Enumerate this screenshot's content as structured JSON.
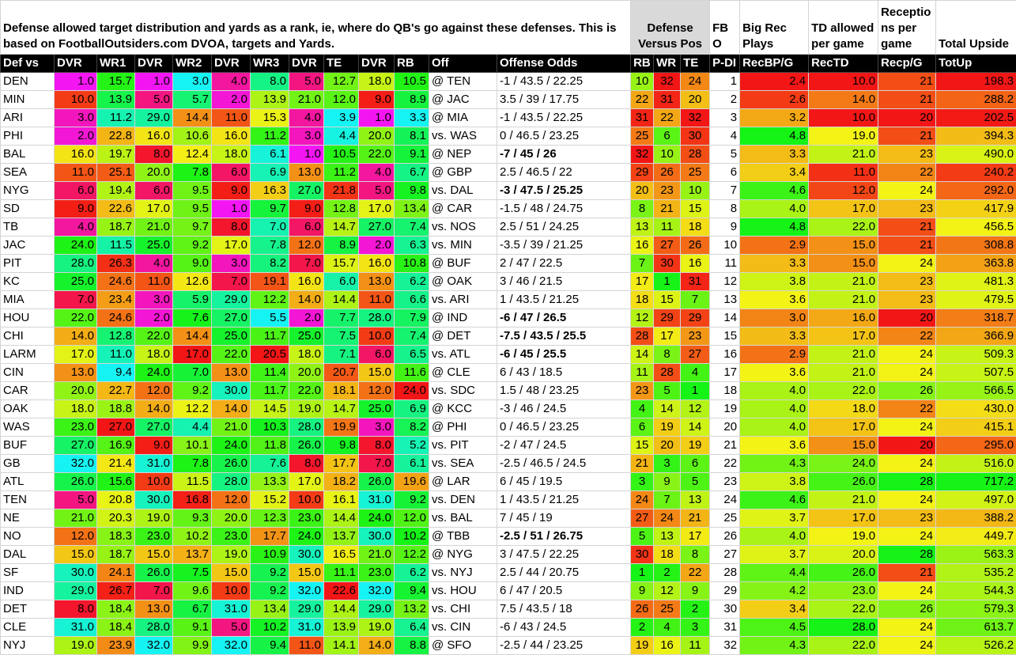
{
  "header": {
    "description": "Defense allowed target distribution and yards as a rank, ie, where do QB's go against these defenses. This is based on FootballOutsiders.com DVOA, targets and Yards.",
    "groups": [
      "Defense Versus Pos",
      "FBO",
      "Big Rec Plays",
      "TD allowed per game",
      "Receptions per game",
      "Total Upside"
    ]
  },
  "table": {
    "columns": [
      "Def vs",
      "DVR",
      "WR1",
      "DVR",
      "WR2",
      "DVR",
      "WR3",
      "DVR",
      "TE",
      "DVR",
      "RB",
      "Off",
      "Offense Odds",
      "RB",
      "WR",
      "TE",
      "P-DI",
      "RecBP/G",
      "RecTD",
      "Recp/G",
      "TotUp"
    ],
    "rows": [
      [
        "DEN",
        "1.0",
        "15.7",
        "1.0",
        "3.0",
        "4.0",
        "8.0",
        "5.0",
        "12.7",
        "18.0",
        "10.5",
        "@ TEN",
        "-1 / 43.5 / 22.25",
        "10",
        "32",
        "24",
        "1",
        "2.4",
        "10.0",
        "21",
        "198.3"
      ],
      [
        "MIN",
        "10.0",
        "13.9",
        "5.0",
        "5.7",
        "2.0",
        "13.9",
        "21.0",
        "12.0",
        "9.0",
        "8.9",
        "@ JAC",
        "3.5 / 39 / 17.75",
        "22",
        "31",
        "20",
        "2",
        "2.6",
        "14.0",
        "21",
        "288.2"
      ],
      [
        "ARI",
        "3.0",
        "11.2",
        "29.0",
        "14.4",
        "11.0",
        "15.3",
        "4.0",
        "3.9",
        "1.0",
        "3.3",
        "@ MIA",
        "-1 / 43.5 / 22.25",
        "31",
        "22",
        "32",
        "3",
        "3.2",
        "10.0",
        "20",
        "202.5"
      ],
      [
        "PHI",
        "2.0",
        "22.8",
        "16.0",
        "10.6",
        "16.0",
        "11.2",
        "3.0",
        "4.4",
        "20.0",
        "8.1",
        "vs. WAS",
        "0 / 46.5 / 23.25",
        "25",
        "6",
        "30",
        "4",
        "4.8",
        "19.0",
        "21",
        "394.3"
      ],
      [
        "BAL",
        "16.0",
        "19.7",
        "8.0",
        "12.4",
        "18.0",
        "6.1",
        "1.0",
        "10.5",
        "22.0",
        "9.1",
        "@ NEP",
        "-7 / 45 / 26",
        "32",
        "10",
        "28",
        "5",
        "3.3",
        "21.0",
        "23",
        "490.0"
      ],
      [
        "SEA",
        "11.0",
        "25.1",
        "20.0",
        "7.8",
        "6.0",
        "6.9",
        "13.0",
        "11.2",
        "4.0",
        "6.7",
        "@ GBP",
        "2.5 / 46.5 / 22",
        "29",
        "26",
        "25",
        "6",
        "3.4",
        "11.0",
        "22",
        "240.2"
      ],
      [
        "NYG",
        "6.0",
        "19.4",
        "6.0",
        "9.5",
        "9.0",
        "16.3",
        "27.0",
        "21.8",
        "5.0",
        "9.8",
        "vs. DAL",
        "-3 / 47.5 / 25.25",
        "20",
        "23",
        "10",
        "7",
        "4.6",
        "12.0",
        "24",
        "292.0"
      ],
      [
        "SD",
        "9.0",
        "22.6",
        "17.0",
        "9.5",
        "1.0",
        "9.7",
        "9.0",
        "12.8",
        "17.0",
        "13.4",
        "@ CAR",
        "-1.5 / 48 / 24.75",
        "8",
        "21",
        "15",
        "8",
        "4.0",
        "17.0",
        "23",
        "417.9"
      ],
      [
        "TB",
        "4.0",
        "18.7",
        "21.0",
        "9.7",
        "8.0",
        "7.0",
        "6.0",
        "14.7",
        "27.0",
        "7.4",
        "vs. NOS",
        "2.5 / 51 / 24.25",
        "13",
        "11",
        "18",
        "9",
        "4.8",
        "22.0",
        "21",
        "456.5"
      ],
      [
        "JAC",
        "24.0",
        "11.5",
        "25.0",
        "9.2",
        "17.0",
        "7.8",
        "12.0",
        "8.9",
        "2.0",
        "6.3",
        "vs. MIN",
        "-3.5 / 39 / 21.25",
        "16",
        "27",
        "26",
        "10",
        "2.9",
        "15.0",
        "21",
        "308.8"
      ],
      [
        "PIT",
        "28.0",
        "26.3",
        "4.0",
        "9.0",
        "3.0",
        "8.2",
        "7.0",
        "15.7",
        "16.0",
        "10.8",
        "@ BUF",
        "2 / 47 / 22.5",
        "7",
        "30",
        "16",
        "11",
        "3.3",
        "15.0",
        "24",
        "363.8"
      ],
      [
        "KC",
        "25.0",
        "24.6",
        "11.0",
        "12.6",
        "7.0",
        "19.1",
        "16.0",
        "6.0",
        "13.0",
        "6.2",
        "@ OAK",
        "3 / 46 / 21.5",
        "17",
        "1",
        "31",
        "12",
        "3.8",
        "21.0",
        "23",
        "481.3"
      ],
      [
        "MIA",
        "7.0",
        "23.4",
        "3.0",
        "5.9",
        "29.0",
        "12.2",
        "14.0",
        "14.4",
        "11.0",
        "6.6",
        "vs. ARI",
        "1 / 43.5 / 21.25",
        "18",
        "15",
        "7",
        "13",
        "3.6",
        "21.0",
        "23",
        "479.5"
      ],
      [
        "HOU",
        "22.0",
        "24.6",
        "2.0",
        "7.6",
        "27.0",
        "5.5",
        "2.0",
        "7.7",
        "28.0",
        "7.9",
        "@ IND",
        "-6 / 47 / 26.5",
        "12",
        "29",
        "29",
        "14",
        "3.0",
        "16.0",
        "20",
        "318.7"
      ],
      [
        "CHI",
        "14.0",
        "12.8",
        "22.0",
        "14.4",
        "25.0",
        "11.7",
        "25.0",
        "7.5",
        "10.0",
        "7.4",
        "@ DET",
        "-7.5 / 43.5 / 25.5",
        "28",
        "17",
        "23",
        "15",
        "3.3",
        "17.0",
        "22",
        "366.9"
      ],
      [
        "LARM",
        "17.0",
        "11.0",
        "18.0",
        "17.0",
        "22.0",
        "20.5",
        "18.0",
        "7.1",
        "6.0",
        "6.5",
        "vs. ATL",
        "-6 / 45 / 25.5",
        "14",
        "8",
        "27",
        "16",
        "2.9",
        "21.0",
        "24",
        "509.3"
      ],
      [
        "CIN",
        "13.0",
        "9.4",
        "24.0",
        "7.0",
        "13.0",
        "11.4",
        "20.0",
        "20.7",
        "15.0",
        "11.6",
        "@ CLE",
        "6 / 43 / 18.5",
        "11",
        "28",
        "4",
        "17",
        "3.6",
        "21.0",
        "24",
        "507.5"
      ],
      [
        "CAR",
        "20.0",
        "22.7",
        "12.0",
        "9.2",
        "30.0",
        "11.7",
        "22.0",
        "18.1",
        "12.0",
        "24.0",
        "vs. SDC",
        "1.5 / 48 / 23.25",
        "23",
        "5",
        "1",
        "18",
        "4.0",
        "22.0",
        "26",
        "566.5"
      ],
      [
        "OAK",
        "18.0",
        "18.8",
        "14.0",
        "12.2",
        "14.0",
        "14.5",
        "19.0",
        "14.7",
        "25.0",
        "6.9",
        "@ KCC",
        "-3 / 46 / 24.5",
        "4",
        "14",
        "12",
        "19",
        "4.0",
        "18.0",
        "22",
        "430.0"
      ],
      [
        "WAS",
        "23.0",
        "27.0",
        "27.0",
        "4.4",
        "21.0",
        "10.3",
        "28.0",
        "19.9",
        "3.0",
        "8.2",
        "@ PHI",
        "0 / 46.5 / 23.25",
        "6",
        "19",
        "14",
        "20",
        "4.0",
        "17.0",
        "24",
        "415.1"
      ],
      [
        "BUF",
        "27.0",
        "16.9",
        "9.0",
        "10.1",
        "24.0",
        "11.8",
        "26.0",
        "9.8",
        "8.0",
        "5.2",
        "vs. PIT",
        "-2 / 47 / 24.5",
        "15",
        "20",
        "19",
        "21",
        "3.6",
        "15.0",
        "20",
        "295.0"
      ],
      [
        "GB",
        "32.0",
        "21.4",
        "31.0",
        "7.8",
        "26.0",
        "7.6",
        "8.0",
        "17.7",
        "7.0",
        "6.1",
        "vs. SEA",
        "-2.5 / 46.5 / 24.5",
        "21",
        "3",
        "6",
        "22",
        "4.3",
        "24.0",
        "24",
        "516.0"
      ],
      [
        "ATL",
        "26.0",
        "15.6",
        "10.0",
        "11.5",
        "28.0",
        "13.3",
        "17.0",
        "18.2",
        "26.0",
        "19.6",
        "@ LAR",
        "6 / 45 / 19.5",
        "3",
        "9",
        "5",
        "23",
        "3.8",
        "26.0",
        "28",
        "717.2"
      ],
      [
        "TEN",
        "5.0",
        "20.8",
        "30.0",
        "16.8",
        "12.0",
        "15.2",
        "10.0",
        "16.1",
        "31.0",
        "9.2",
        "vs. DEN",
        "1 / 43.5 / 21.25",
        "24",
        "7",
        "13",
        "24",
        "4.6",
        "21.0",
        "24",
        "497.0"
      ],
      [
        "NE",
        "21.0",
        "20.3",
        "19.0",
        "9.3",
        "20.0",
        "12.3",
        "23.0",
        "14.4",
        "24.0",
        "12.0",
        "vs. BAL",
        "7 / 45 / 19",
        "27",
        "24",
        "21",
        "25",
        "3.7",
        "17.0",
        "23",
        "388.2"
      ],
      [
        "NO",
        "12.0",
        "18.3",
        "23.0",
        "10.2",
        "23.0",
        "17.7",
        "24.0",
        "13.7",
        "30.0",
        "10.2",
        "@ TBB",
        "-2.5 / 51 / 26.75",
        "5",
        "13",
        "17",
        "26",
        "4.0",
        "19.0",
        "24",
        "449.7"
      ],
      [
        "DAL",
        "15.0",
        "18.7",
        "15.0",
        "13.7",
        "19.0",
        "10.9",
        "30.0",
        "16.5",
        "21.0",
        "12.2",
        "@ NYG",
        "3 / 47.5 / 22.25",
        "30",
        "18",
        "8",
        "27",
        "3.7",
        "20.0",
        "28",
        "563.3"
      ],
      [
        "SF",
        "30.0",
        "24.1",
        "26.0",
        "7.5",
        "15.0",
        "9.2",
        "15.0",
        "11.1",
        "23.0",
        "6.2",
        "vs. NYJ",
        "2.5 / 44 / 20.75",
        "1",
        "2",
        "22",
        "28",
        "4.4",
        "26.0",
        "21",
        "535.2"
      ],
      [
        "IND",
        "29.0",
        "26.7",
        "7.0",
        "9.6",
        "10.0",
        "9.2",
        "32.0",
        "22.6",
        "32.0",
        "9.4",
        "vs. HOU",
        "6 / 47 / 20.5",
        "9",
        "12",
        "9",
        "29",
        "4.2",
        "23.0",
        "24",
        "544.3"
      ],
      [
        "DET",
        "8.0",
        "18.4",
        "13.0",
        "6.7",
        "31.0",
        "13.4",
        "29.0",
        "14.4",
        "29.0",
        "13.2",
        "vs. CHI",
        "7.5 / 43.5 / 18",
        "26",
        "25",
        "2",
        "30",
        "3.4",
        "22.0",
        "26",
        "579.3"
      ],
      [
        "CLE",
        "31.0",
        "18.4",
        "28.0",
        "9.1",
        "5.0",
        "10.2",
        "31.0",
        "13.9",
        "19.0",
        "6.4",
        "vs. CIN",
        "-6 / 43 / 24.5",
        "2",
        "4",
        "3",
        "31",
        "4.5",
        "28.0",
        "24",
        "613.7"
      ],
      [
        "NYJ",
        "19.0",
        "23.9",
        "32.0",
        "9.9",
        "32.0",
        "9.4",
        "11.0",
        "14.1",
        "14.0",
        "8.8",
        "@ SFO",
        "-2.5 / 44 / 23.25",
        "19",
        "16",
        "11",
        "32",
        "4.3",
        "22.0",
        "24",
        "526.2"
      ]
    ],
    "bold_rows": [
      4,
      6,
      13,
      14,
      15,
      25
    ]
  }
}
